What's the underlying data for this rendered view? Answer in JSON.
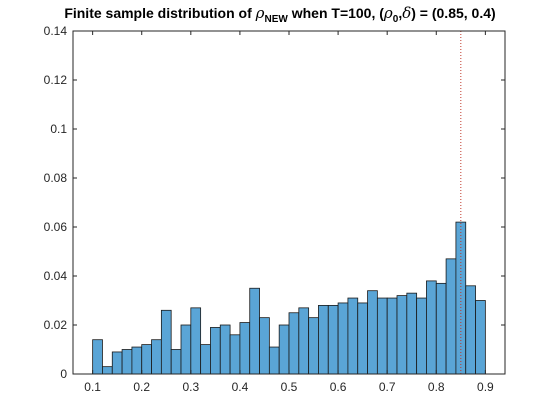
{
  "chart_data": {
    "type": "bar",
    "title": {
      "prefix": "Finite sample distribution of ",
      "rho_symbol": "ρ",
      "rho_sub": "NEW",
      "middle": " when T=100, (",
      "rho0_symbol": "ρ",
      "rho0_sub": "0",
      "comma": ",",
      "delta_symbol": "δ",
      "suffix": ") = (0.85, 0.4)"
    },
    "xlabel": "",
    "ylabel": "",
    "xlim": [
      0.06,
      0.94
    ],
    "ylim": [
      0,
      0.14
    ],
    "xticks": [
      0.1,
      0.2,
      0.3,
      0.4,
      0.5,
      0.6,
      0.7,
      0.8,
      0.9
    ],
    "xtick_labels": [
      "0.1",
      "0.2",
      "0.3",
      "0.4",
      "0.5",
      "0.6",
      "0.7",
      "0.8",
      "0.9"
    ],
    "yticks": [
      0,
      0.02,
      0.04,
      0.06,
      0.08,
      0.1,
      0.12,
      0.14
    ],
    "ytick_labels": [
      "0",
      "0.02",
      "0.04",
      "0.06",
      "0.08",
      "0.1",
      "0.12",
      "0.14"
    ],
    "bar_color": "#5aa5d6",
    "edge_color": "#1a1a1a",
    "reference_line": {
      "x": 0.85,
      "color": "#c0392b",
      "style": "dotted"
    },
    "bins": {
      "start": 0.1,
      "width": 0.02
    },
    "values": [
      0.014,
      0.003,
      0.009,
      0.01,
      0.011,
      0.012,
      0.014,
      0.026,
      0.01,
      0.02,
      0.027,
      0.012,
      0.019,
      0.02,
      0.016,
      0.021,
      0.035,
      0.023,
      0.011,
      0.02,
      0.025,
      0.027,
      0.023,
      0.028,
      0.028,
      0.029,
      0.031,
      0.029,
      0.034,
      0.031,
      0.031,
      0.032,
      0.033,
      0.031,
      0.038,
      0.037,
      0.047,
      0.062,
      0.036,
      0.03
    ],
    "grid": false
  }
}
